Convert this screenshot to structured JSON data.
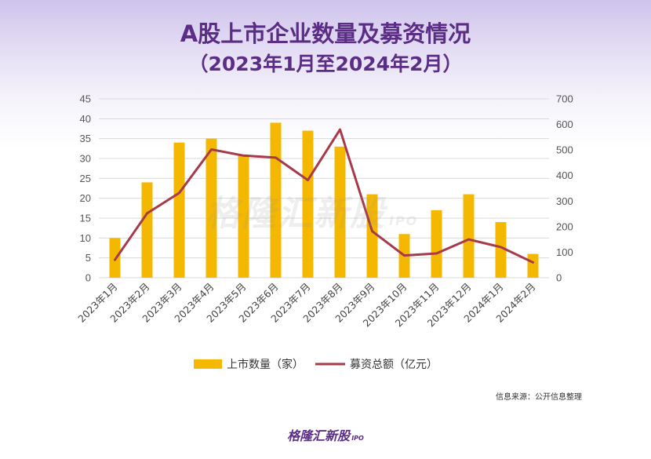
{
  "header": {
    "title_line1": "A股上市企业数量及募资情况",
    "title_line2": "（2023年1月至2024年2月）"
  },
  "watermark": {
    "text": "格隆汇新股",
    "ipo": "IPO"
  },
  "source_note": "信息来源：公开信息整理",
  "logo": {
    "text": "格隆汇新股",
    "ipo": "IPO"
  },
  "colors": {
    "bar": "#f5b800",
    "line": "#a63a48",
    "title": "#5b2d86",
    "grid": "#d9d9d9"
  },
  "chart_data": {
    "type": "bar",
    "categories": [
      "2023年1月",
      "2023年2月",
      "2023年3月",
      "2023年4月",
      "2023年5月",
      "2023年6月",
      "2023年7月",
      "2023年8月",
      "2023年9月",
      "2023年10月",
      "2023年11月",
      "2023年12月",
      "2024年1月",
      "2024年2月"
    ],
    "series": [
      {
        "name": "上市数量（家）",
        "type": "bar",
        "axis": "left",
        "values": [
          10,
          24,
          34,
          35,
          31,
          39,
          37,
          33,
          21,
          11,
          17,
          21,
          14,
          6
        ]
      },
      {
        "name": "募资总额（亿元）",
        "type": "line",
        "axis": "right",
        "values": [
          70,
          252,
          332,
          502,
          478,
          470,
          382,
          580,
          182,
          87,
          95,
          150,
          120,
          60
        ]
      }
    ],
    "ylim_left": [
      0,
      45
    ],
    "yticks_left": [
      0,
      5,
      10,
      15,
      20,
      25,
      30,
      35,
      40,
      45
    ],
    "ylim_right": [
      0,
      700
    ],
    "yticks_right": [
      0,
      100,
      200,
      300,
      400,
      500,
      600,
      700
    ],
    "grid": true,
    "legend_position": "bottom"
  }
}
